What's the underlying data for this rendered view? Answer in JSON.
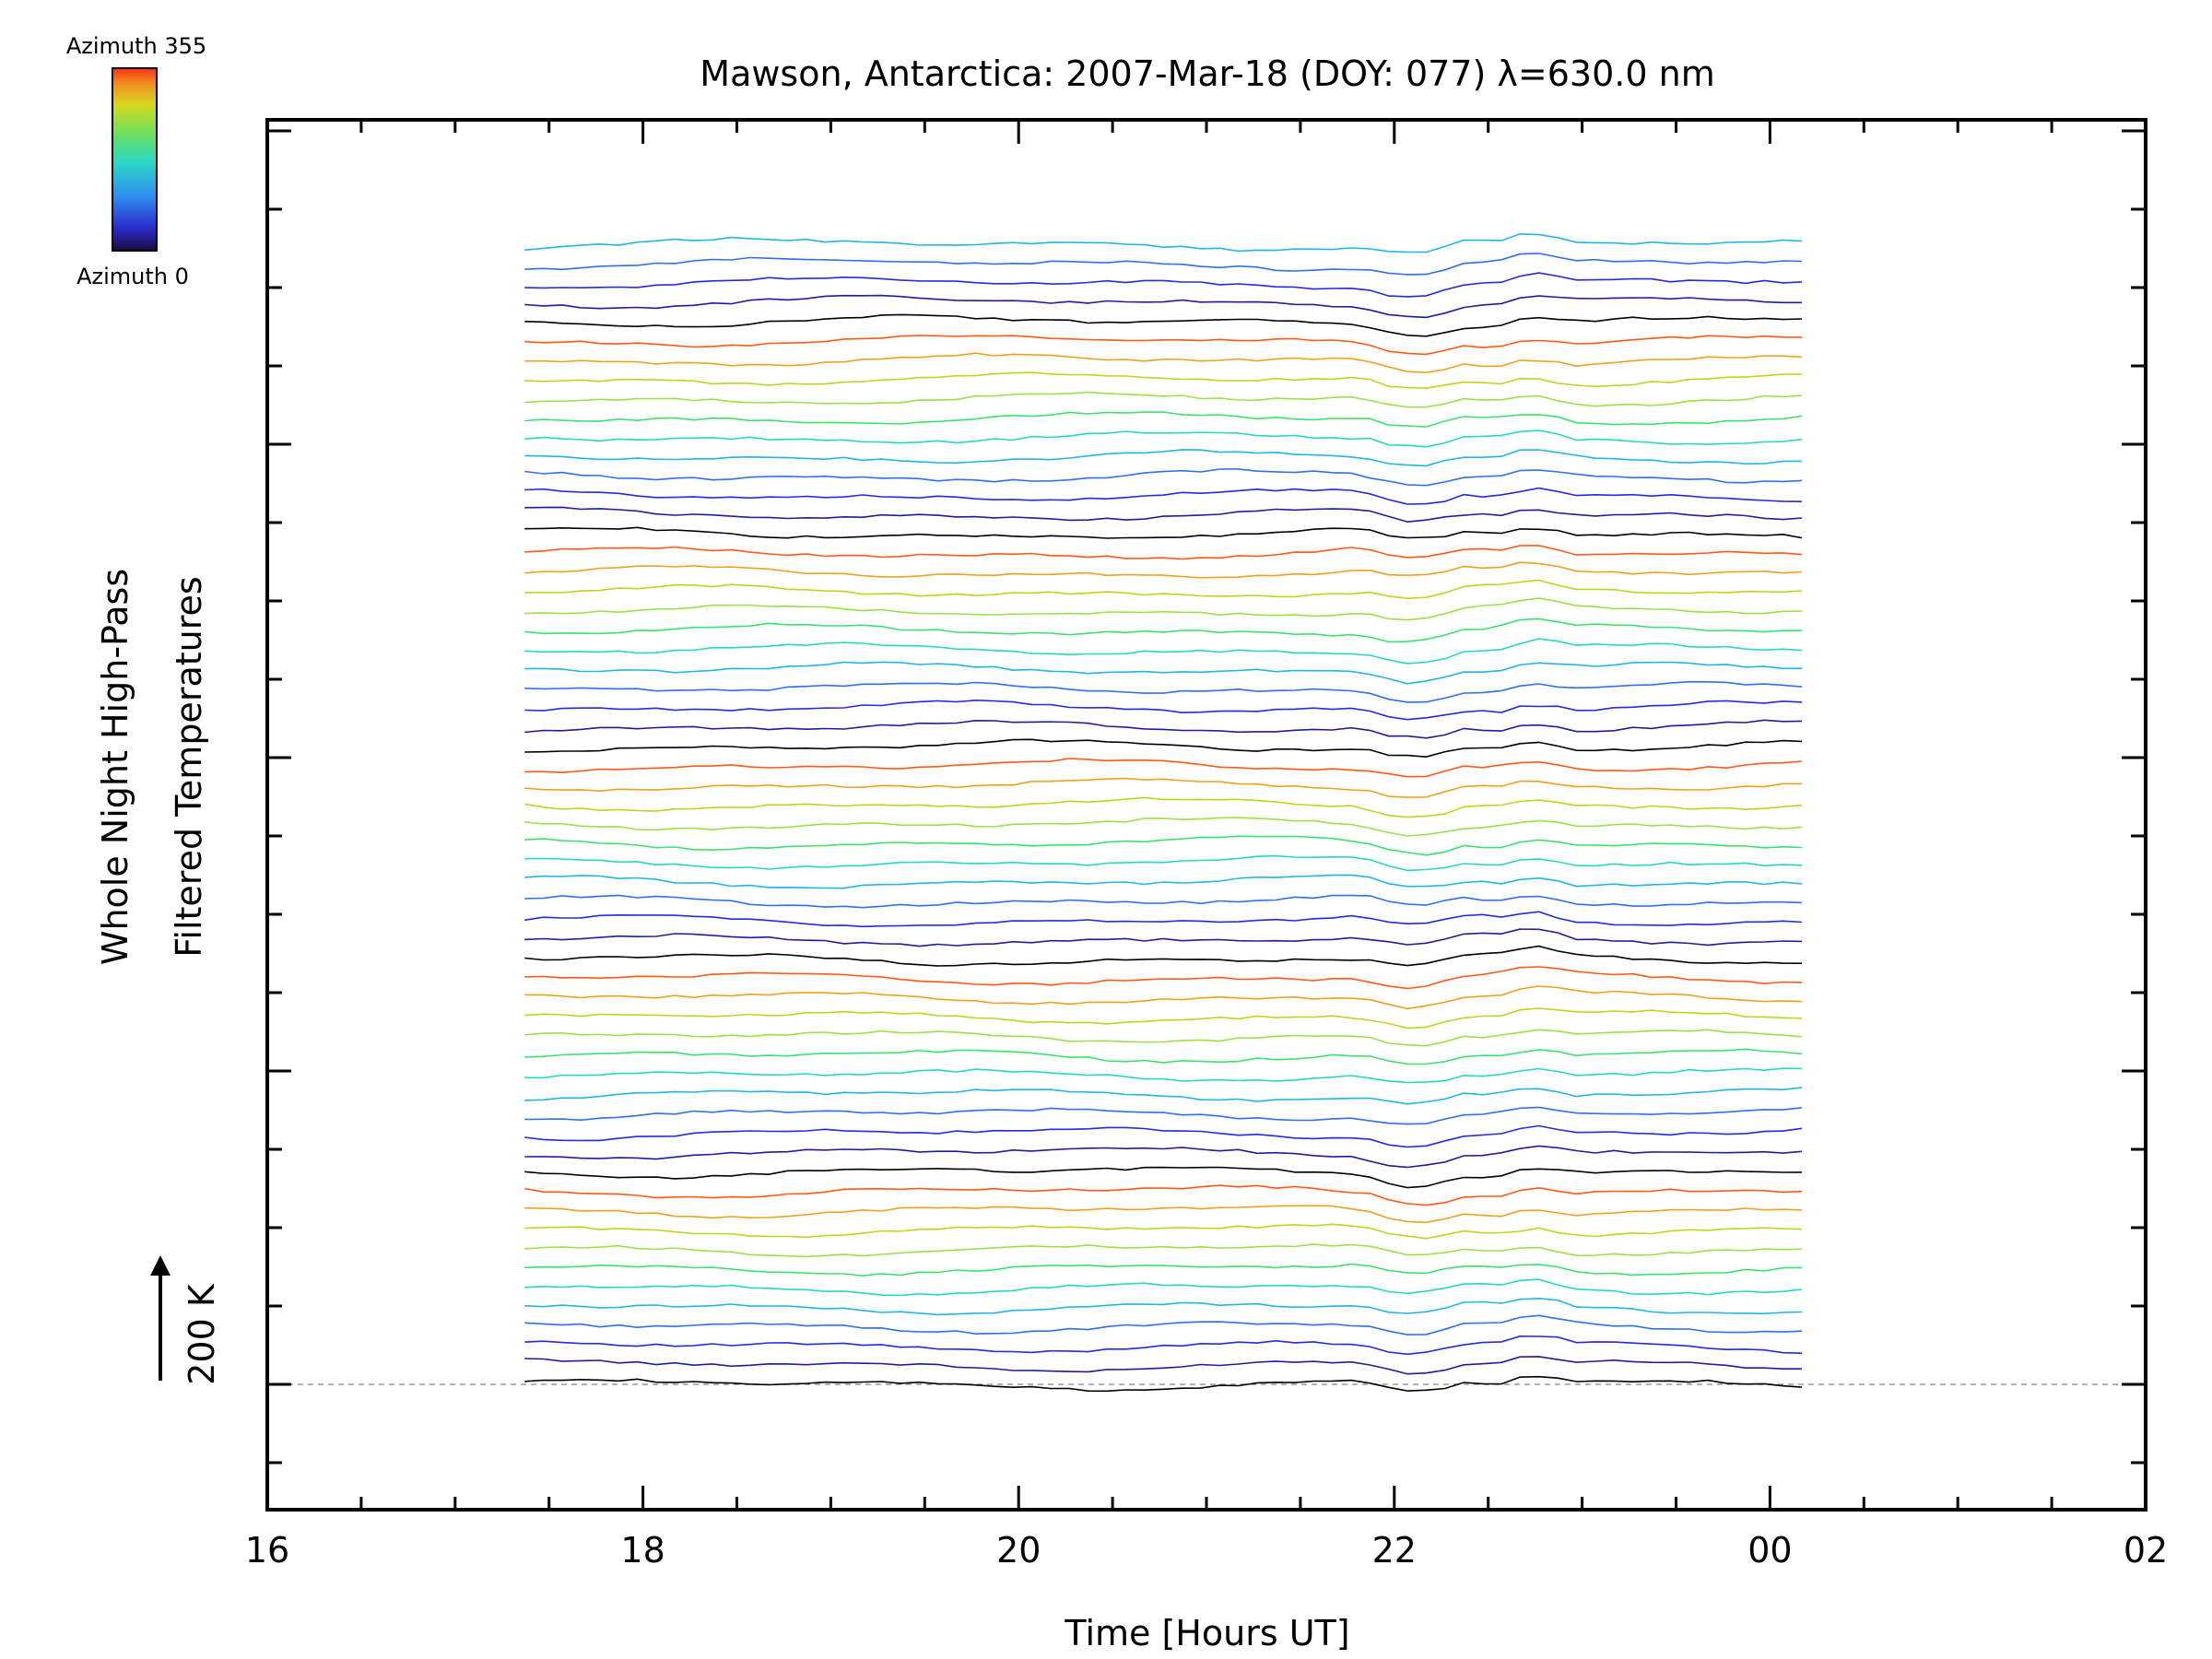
{
  "chart_data": {
    "type": "line",
    "title": "Mawson, Antarctica: 2007-Mar-18 (DOY: 077) λ=630.0 nm",
    "xlabel": "Time [Hours UT]",
    "ylabel_line1": "Whole Night High-Pass",
    "ylabel_line2": "Filtered Temperatures",
    "scale_label": "200 K",
    "colorbar": {
      "top_label": "Azimuth 355",
      "bottom_label": "Azimuth 0"
    },
    "x_tick_labels": [
      "16",
      "18",
      "20",
      "22",
      "00",
      "02"
    ],
    "xlim": [
      16,
      26
    ],
    "data_start_hour": 17.37,
    "data_end_hour": 24.17,
    "scale_kelvin": 200,
    "series_count": 60,
    "colors": [
      "#000000",
      "#1e1e9a",
      "#2828dd",
      "#2f6ff0",
      "#23b4e8",
      "#27d8c2",
      "#40e070",
      "#9be24a",
      "#c8d020",
      "#f0a020",
      "#ff5a14"
    ],
    "y_baseline": 0
  }
}
